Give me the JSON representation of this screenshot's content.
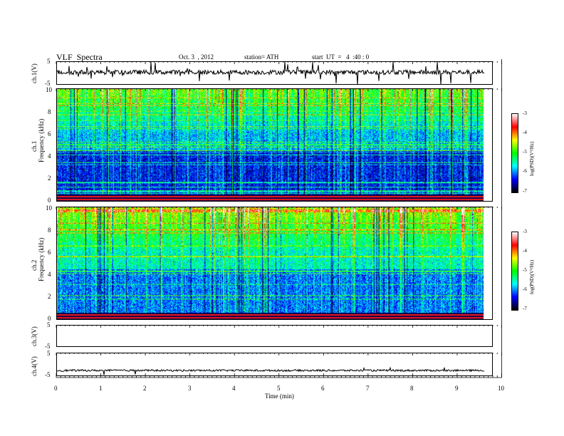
{
  "header": {
    "title": "VLF  Spectra",
    "date": "Oct. 3  , 2012",
    "station": "station= ATH",
    "start": "start  UT  =   4  :40 : 0"
  },
  "panels": {
    "ch1_wave": {
      "label": "ch.1(V)",
      "ticks": [
        "5",
        "-5"
      ]
    },
    "spec1": {
      "label_ch": "ch.1",
      "label_freq": "Frequency  (kHz)",
      "ticks": [
        "10",
        "8",
        "6",
        "4",
        "2",
        "0"
      ]
    },
    "spec2": {
      "label_ch": "ch.2",
      "label_freq": "Frequency  (kHz)",
      "ticks": [
        "10",
        "8",
        "6",
        "4",
        "2",
        "0"
      ]
    },
    "ch3_wave": {
      "label": "ch.3(V)",
      "ticks": [
        "5",
        "-5"
      ]
    },
    "ch4_wave": {
      "label": "ch.4(V)",
      "ticks": [
        "5",
        "-5"
      ]
    }
  },
  "colorbar": {
    "label": "log(PSD)(V²/Hz)",
    "ticks": [
      "-3",
      "-4",
      "-5",
      "-6",
      "-7"
    ]
  },
  "xaxis": {
    "label": "Time  (min)",
    "ticks": [
      "0",
      "1",
      "2",
      "3",
      "4",
      "5",
      "6",
      "7",
      "8",
      "9",
      "10"
    ]
  },
  "chart_data": {
    "type": "heatmap",
    "title": "VLF  Spectra",
    "xlabel": "Time  (min)",
    "ylabel": "Frequency  (kHz)",
    "xlim": [
      0,
      10
    ],
    "data_end_min": 9.8,
    "ylim": [
      0,
      10
    ],
    "colorbar_range": [
      -7,
      -3
    ],
    "colorbar_label": "log(PSD)(V²/Hz)",
    "colors": [
      "#000000",
      "#0000ff",
      "#00ffff",
      "#00ff00",
      "#ffff00",
      "#ff0000",
      "#ffffff"
    ],
    "waveforms": [
      {
        "name": "ch.1(V)",
        "ylim": [
          -5,
          5
        ],
        "mean": 0.5
      },
      {
        "name": "ch.3(V)",
        "ylim": [
          -5,
          5
        ],
        "mean": -5
      },
      {
        "name": "ch.4(V)",
        "ylim": [
          -5,
          5
        ],
        "mean": -2.5
      }
    ],
    "spectrograms": [
      {
        "name": "ch.1",
        "background_logpsd": -6.0
      },
      {
        "name": "ch.2",
        "background_logpsd": -5.7
      }
    ]
  }
}
